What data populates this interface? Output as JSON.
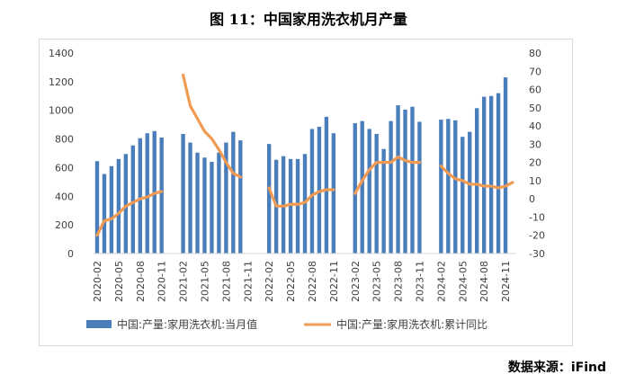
{
  "title": "图 11：中国家用洗衣机月产量",
  "source": "数据来源：iFind",
  "chart_data": {
    "type": "bar+line",
    "categories": [
      "2020-02",
      "2020-03",
      "2020-04",
      "2020-05",
      "2020-06",
      "2020-07",
      "2020-08",
      "2020-09",
      "2020-10",
      "2020-11",
      "2020-12",
      "2021-01",
      "2021-02",
      "2021-03",
      "2021-04",
      "2021-05",
      "2021-06",
      "2021-07",
      "2021-08",
      "2021-09",
      "2021-10",
      "2021-11",
      "2021-12",
      "2022-01",
      "2022-02",
      "2022-03",
      "2022-04",
      "2022-05",
      "2022-06",
      "2022-07",
      "2022-08",
      "2022-09",
      "2022-10",
      "2022-11",
      "2022-12",
      "2023-01",
      "2023-02",
      "2023-03",
      "2023-04",
      "2023-05",
      "2023-06",
      "2023-07",
      "2023-08",
      "2023-09",
      "2023-10",
      "2023-11",
      "2023-12",
      "2024-01",
      "2024-02",
      "2024-03",
      "2024-04",
      "2024-05",
      "2024-06",
      "2024-07",
      "2024-08",
      "2024-09",
      "2024-10",
      "2024-11",
      "2024-12"
    ],
    "tick_labels": [
      "2020-02",
      "2020-05",
      "2020-08",
      "2020-11",
      "2021-02",
      "2021-05",
      "2021-08",
      "2021-11",
      "2022-02",
      "2022-05",
      "2022-08",
      "2022-11",
      "2023-02",
      "2023-05",
      "2023-08",
      "2023-11",
      "2024-02",
      "2024-05",
      "2024-08",
      "2024-11"
    ],
    "series": [
      {
        "name": "中国:产量:家用洗衣机:当月值",
        "kind": "bar",
        "axis": "left",
        "color": "#4a7ebb",
        "values": [
          645,
          555,
          610,
          660,
          695,
          755,
          805,
          840,
          855,
          810,
          null,
          null,
          835,
          775,
          705,
          670,
          640,
          705,
          775,
          850,
          790,
          null,
          null,
          null,
          765,
          655,
          680,
          660,
          660,
          695,
          870,
          885,
          955,
          840,
          null,
          null,
          910,
          925,
          870,
          835,
          730,
          925,
          1035,
          1005,
          1025,
          920,
          null,
          null,
          935,
          940,
          930,
          815,
          850,
          1015,
          1095,
          1100,
          1120,
          1230,
          null
        ]
      },
      {
        "name": "中国:产量:家用洗衣机:累计同比",
        "kind": "line",
        "axis": "right",
        "color": "#f09a52",
        "values": [
          -20,
          -12,
          -11,
          -8,
          -4,
          -2,
          0,
          1,
          3,
          4,
          null,
          null,
          68,
          51,
          44,
          37,
          33,
          27,
          20,
          14,
          12,
          null,
          null,
          null,
          6,
          -4,
          -4,
          -3,
          -3,
          -2,
          2,
          4,
          5,
          5,
          null,
          null,
          3,
          10,
          16,
          20,
          20,
          20,
          23,
          21,
          20,
          20,
          null,
          null,
          18,
          14,
          11,
          10,
          8,
          8,
          7,
          7,
          6,
          7,
          9
        ]
      }
    ],
    "y_left": {
      "min": 0,
      "max": 1400,
      "step": 200
    },
    "y_right": {
      "min": -30,
      "max": 80,
      "step": 10
    },
    "legend_position": "bottom",
    "grid": false
  }
}
